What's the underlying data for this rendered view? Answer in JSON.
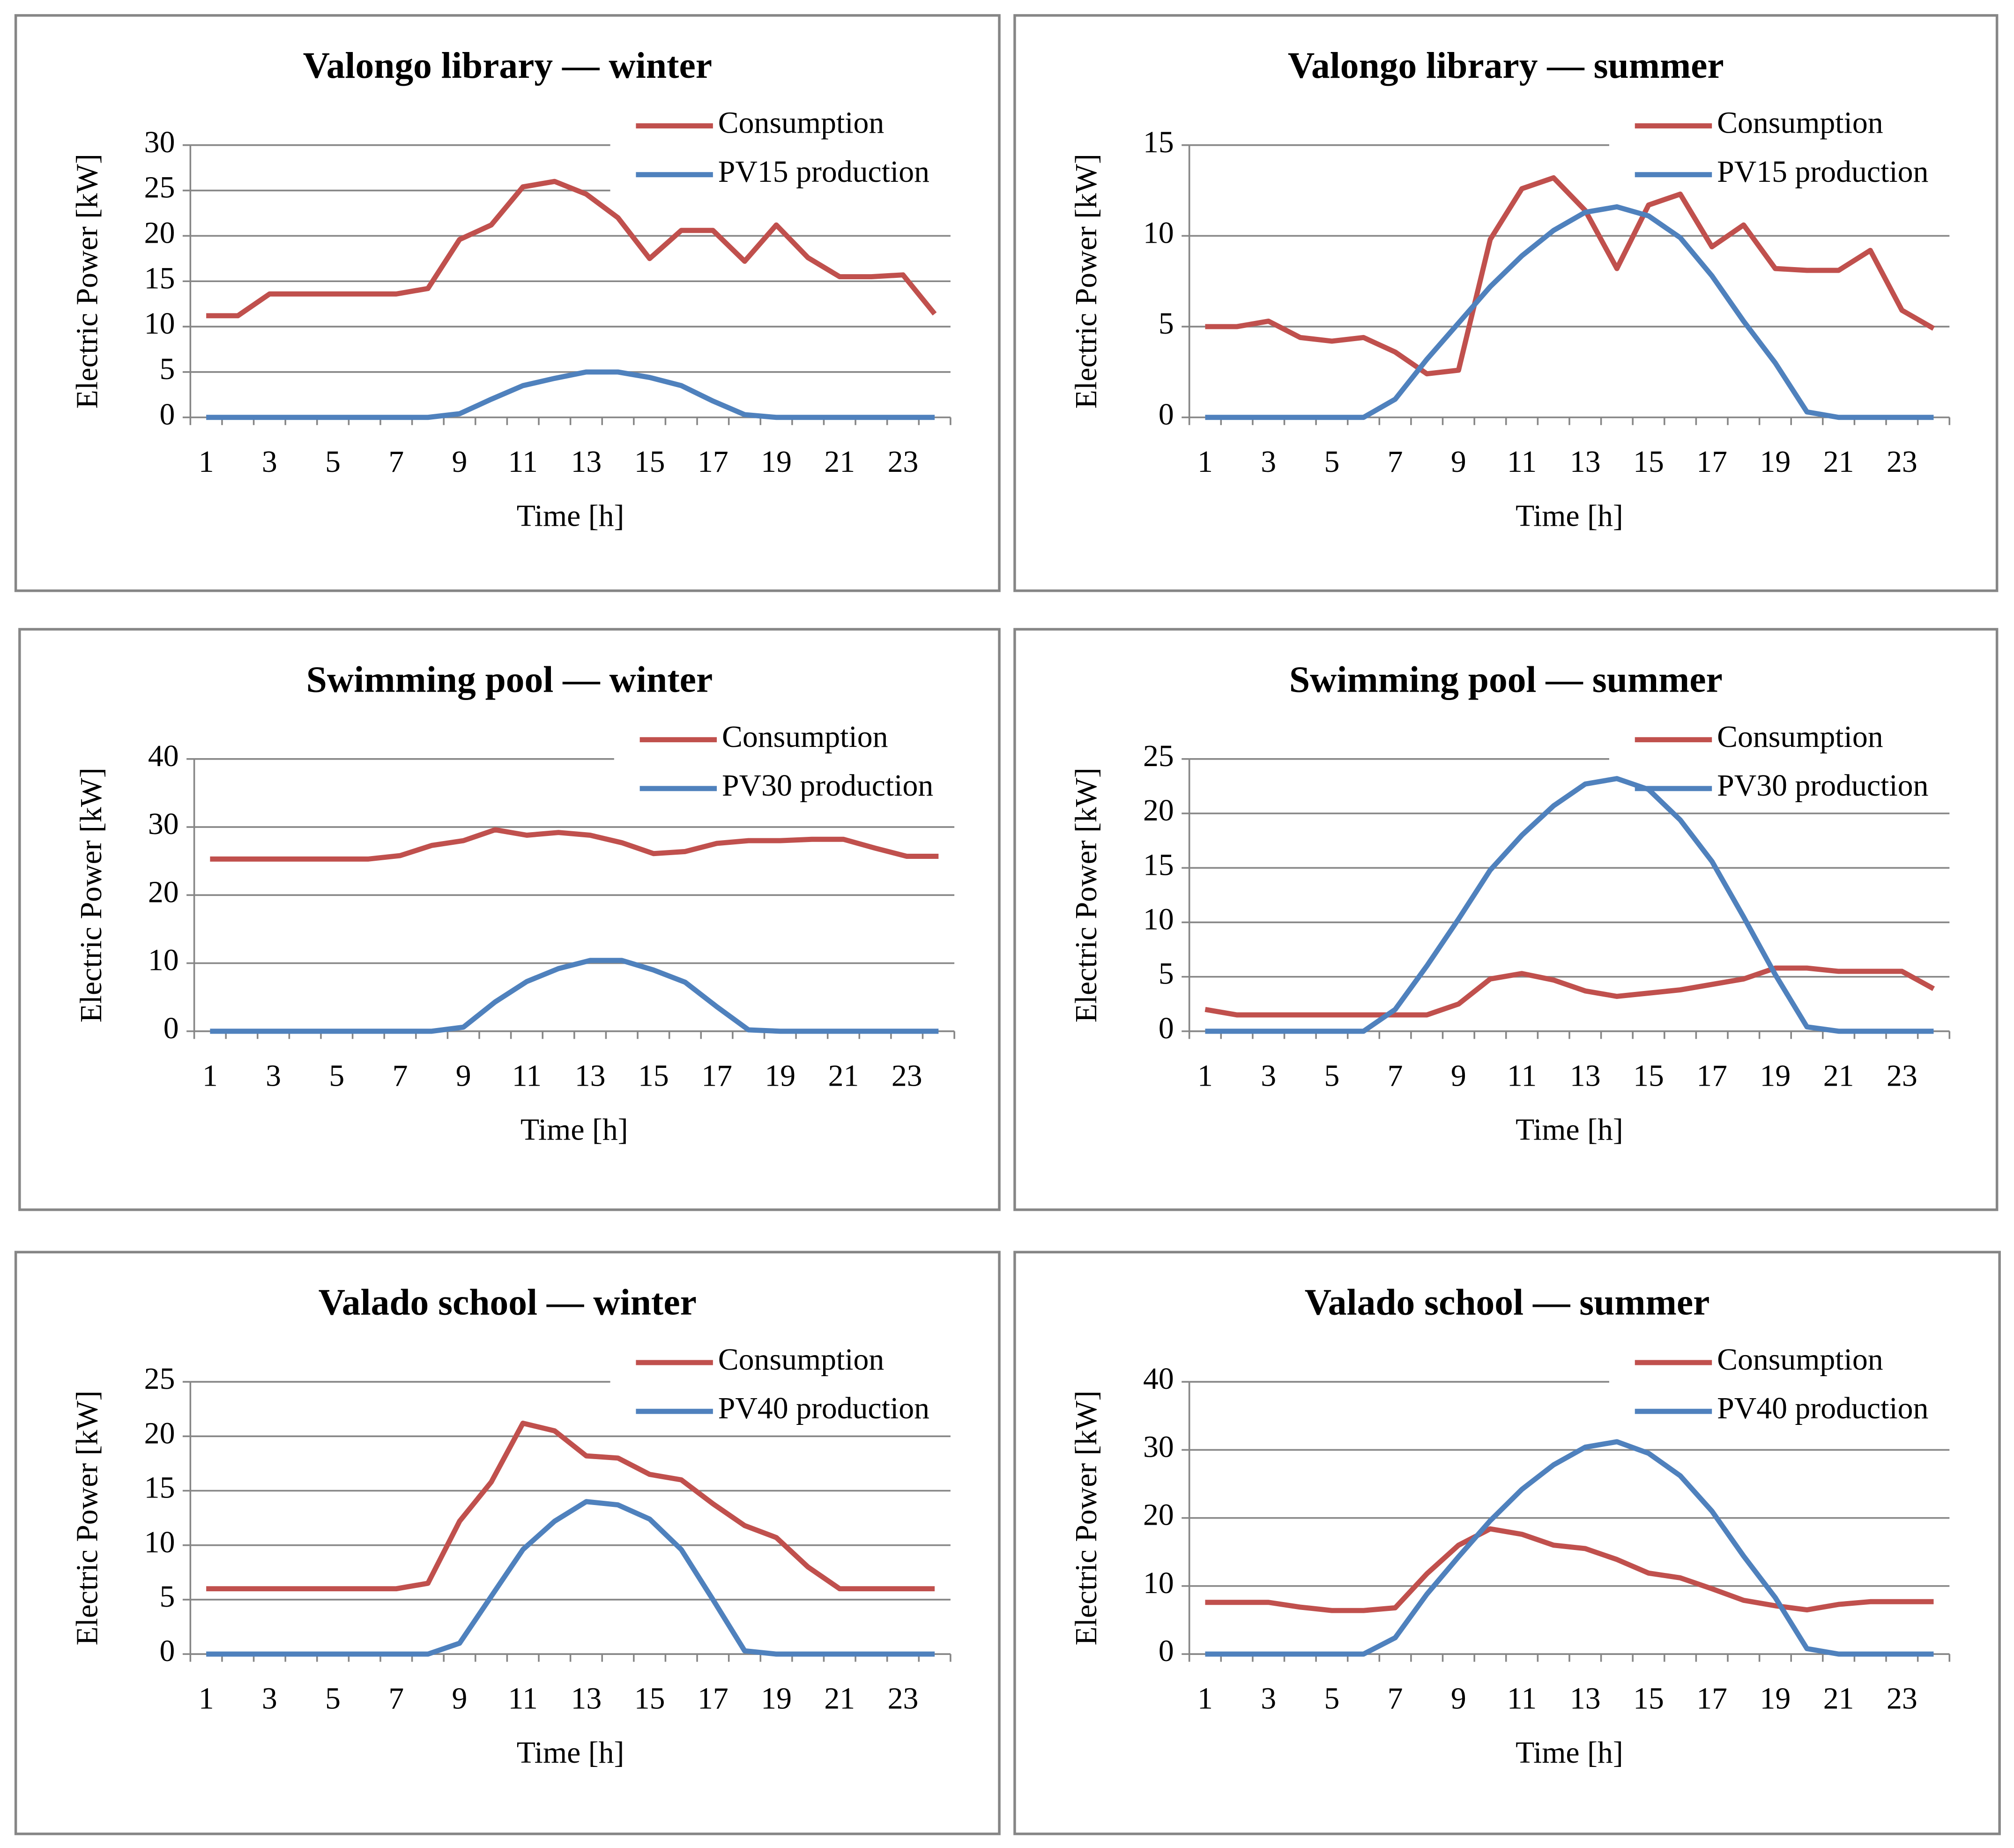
{
  "chart_data": [
    {
      "type": "line",
      "title": "Valongo library — winter",
      "x_label": "Time [h]",
      "y_label": "Electric Power  [kW]",
      "categories": [
        1,
        null,
        3,
        null,
        5,
        null,
        7,
        null,
        9,
        null,
        11,
        null,
        13,
        null,
        15,
        null,
        17,
        null,
        19,
        null,
        21,
        null,
        23,
        null
      ],
      "series": [
        {
          "name": "Consumption",
          "color": "#c0504d",
          "values": [
            11.2,
            11.2,
            13.6,
            13.6,
            13.6,
            13.6,
            13.6,
            14.2,
            19.6,
            21.2,
            25.4,
            26,
            24.6,
            22,
            17.5,
            20.6,
            20.6,
            17.2,
            21.2,
            17.6,
            15.5,
            15.5,
            15.7,
            11.4
          ]
        },
        {
          "name": "PV15 production",
          "color": "#4f81bd",
          "values": [
            0,
            0,
            0,
            0,
            0,
            0,
            0,
            0,
            0.4,
            2,
            3.5,
            4.3,
            5,
            5,
            4.4,
            3.5,
            1.8,
            0.3,
            0,
            0,
            0,
            0,
            0,
            0
          ]
        }
      ],
      "ylim": [
        0,
        30
      ],
      "yticks": [
        0,
        5,
        10,
        15,
        20,
        25,
        30
      ],
      "grid": true
    },
    {
      "type": "line",
      "title": "Valongo library — summer",
      "x_label": "Time [h]",
      "y_label": "Electric Power  [kW]",
      "categories": [
        1,
        null,
        3,
        null,
        5,
        null,
        7,
        null,
        9,
        null,
        11,
        null,
        13,
        null,
        15,
        null,
        17,
        null,
        19,
        null,
        21,
        null,
        23,
        null
      ],
      "series": [
        {
          "name": "Consumption",
          "color": "#c0504d",
          "values": [
            5,
            5,
            5.3,
            4.4,
            4.2,
            4.4,
            3.6,
            2.4,
            2.6,
            9.8,
            12.6,
            13.2,
            11.4,
            8.2,
            11.7,
            12.3,
            9.4,
            10.6,
            8.2,
            8.1,
            8.1,
            9.2,
            5.9,
            4.9
          ]
        },
        {
          "name": "PV15 production",
          "color": "#4f81bd",
          "values": [
            0,
            0,
            0,
            0,
            0,
            0,
            1,
            3.2,
            5.2,
            7.2,
            8.9,
            10.3,
            11.3,
            11.6,
            11.1,
            9.9,
            7.8,
            5.3,
            3,
            0.3,
            0,
            0,
            0,
            0
          ]
        }
      ],
      "ylim": [
        0,
        15
      ],
      "yticks": [
        0,
        5,
        10,
        15
      ],
      "grid": true
    },
    {
      "type": "line",
      "title": "Swimming pool — winter",
      "x_label": "Time [h]",
      "y_label": "Electric Power  [kW]",
      "categories": [
        1,
        null,
        3,
        null,
        5,
        null,
        7,
        null,
        9,
        null,
        11,
        null,
        13,
        null,
        15,
        null,
        17,
        null,
        19,
        null,
        21,
        null,
        23,
        null
      ],
      "series": [
        {
          "name": "Consumption",
          "color": "#c0504d",
          "values": [
            25.3,
            25.3,
            25.3,
            25.3,
            25.3,
            25.3,
            25.8,
            27.3,
            28,
            29.6,
            28.8,
            29.2,
            28.8,
            27.7,
            26.1,
            26.4,
            27.6,
            28,
            28,
            28.2,
            28.2,
            26.9,
            25.7,
            25.7
          ]
        },
        {
          "name": "PV30 production",
          "color": "#4f81bd",
          "values": [
            0,
            0,
            0,
            0,
            0,
            0,
            0,
            0,
            0.6,
            4.3,
            7.3,
            9.2,
            10.4,
            10.4,
            9,
            7.2,
            3.6,
            0.2,
            0,
            0,
            0,
            0,
            0,
            0
          ]
        }
      ],
      "ylim": [
        0,
        40
      ],
      "yticks": [
        0,
        10,
        20,
        30,
        40
      ],
      "grid": true
    },
    {
      "type": "line",
      "title": "Swimming pool — summer",
      "x_label": "Time [h]",
      "y_label": "Electric Power  [kW]",
      "categories": [
        1,
        null,
        3,
        null,
        5,
        null,
        7,
        null,
        9,
        null,
        11,
        null,
        13,
        null,
        15,
        null,
        17,
        null,
        19,
        null,
        21,
        null,
        23,
        null
      ],
      "series": [
        {
          "name": "Consumption",
          "color": "#c0504d",
          "values": [
            2,
            1.5,
            1.5,
            1.5,
            1.5,
            1.5,
            1.5,
            1.5,
            2.5,
            4.8,
            5.3,
            4.7,
            3.7,
            3.2,
            3.5,
            3.8,
            4.3,
            4.8,
            5.8,
            5.8,
            5.5,
            5.5,
            5.5,
            3.9
          ]
        },
        {
          "name": "PV30 production",
          "color": "#4f81bd",
          "values": [
            0,
            0,
            0,
            0,
            0,
            0,
            2,
            6,
            10.3,
            14.8,
            18,
            20.7,
            22.7,
            23.2,
            22.2,
            19.4,
            15.6,
            10.5,
            5.2,
            0.4,
            0,
            0,
            0,
            0
          ]
        }
      ],
      "ylim": [
        0,
        25
      ],
      "yticks": [
        0,
        5,
        10,
        15,
        20,
        25
      ],
      "grid": true
    },
    {
      "type": "line",
      "title": "Valado school — winter",
      "x_label": "Time [h]",
      "y_label": "Electric Power  [kW]",
      "categories": [
        1,
        null,
        3,
        null,
        5,
        null,
        7,
        null,
        9,
        null,
        11,
        null,
        13,
        null,
        15,
        null,
        17,
        null,
        19,
        null,
        21,
        null,
        23,
        null
      ],
      "series": [
        {
          "name": "Consumption",
          "color": "#c0504d",
          "values": [
            6,
            6,
            6,
            6,
            6,
            6,
            6,
            6.5,
            12.2,
            15.8,
            21.2,
            20.5,
            18.2,
            18,
            16.5,
            16,
            13.8,
            11.8,
            10.7,
            8,
            6,
            6,
            6,
            6
          ]
        },
        {
          "name": "PV40 production",
          "color": "#4f81bd",
          "values": [
            0,
            0,
            0,
            0,
            0,
            0,
            0,
            0,
            1,
            5.3,
            9.6,
            12.2,
            14,
            13.7,
            12.4,
            9.6,
            5,
            0.3,
            0,
            0,
            0,
            0,
            0,
            0
          ]
        }
      ],
      "ylim": [
        0,
        25
      ],
      "yticks": [
        0,
        5,
        10,
        15,
        20,
        25
      ],
      "grid": true
    },
    {
      "type": "line",
      "title": "Valado school — summer",
      "x_label": "Time [h]",
      "y_label": "Electric Power  [kW]",
      "categories": [
        1,
        null,
        3,
        null,
        5,
        null,
        7,
        null,
        9,
        null,
        11,
        null,
        13,
        null,
        15,
        null,
        17,
        null,
        19,
        null,
        21,
        null,
        23,
        null
      ],
      "series": [
        {
          "name": "Consumption",
          "color": "#c0504d",
          "values": [
            7.6,
            7.6,
            7.6,
            6.9,
            6.4,
            6.4,
            6.8,
            11.8,
            16,
            18.4,
            17.6,
            16,
            15.5,
            13.9,
            11.9,
            11.2,
            9.6,
            7.9,
            7.1,
            6.5,
            7.3,
            7.7,
            7.7,
            7.7
          ]
        },
        {
          "name": "PV40 production",
          "color": "#4f81bd",
          "values": [
            0,
            0,
            0,
            0,
            0,
            0,
            2.4,
            8.8,
            14.3,
            19.6,
            24.2,
            27.8,
            30.4,
            31.2,
            29.5,
            26.2,
            21,
            14.4,
            8.3,
            0.8,
            0,
            0,
            0,
            0
          ]
        }
      ],
      "ylim": [
        0,
        40
      ],
      "yticks": [
        0,
        10,
        20,
        30,
        40
      ],
      "grid": true
    }
  ]
}
